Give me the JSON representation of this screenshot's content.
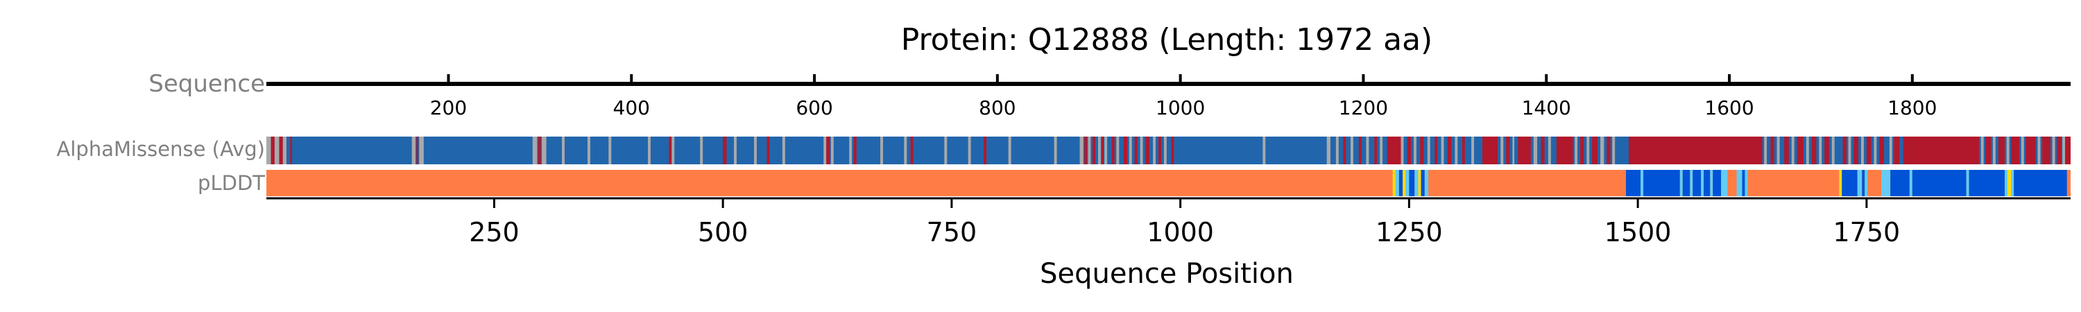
{
  "chart_data": {
    "type": "heatmap",
    "title": "Protein: Q12888 (Length: 1972 aa)",
    "xlabel": "Sequence Position",
    "xlim": [
      1,
      1972
    ],
    "bottom_ticks": [
      250,
      500,
      750,
      1000,
      1250,
      1500,
      1750
    ],
    "top_ticks": [
      200,
      400,
      600,
      800,
      1000,
      1200,
      1400,
      1600,
      1800
    ],
    "row_labels": {
      "sequence": "Sequence",
      "alphamissense": "AlphaMissense (Avg)",
      "plddt": "pLDDT"
    },
    "alphamissense": {
      "colors": {
        "benign": "#2166ac",
        "ambiguous": "#a7a9ac",
        "pathogenic": "#b2182b"
      },
      "default": "benign",
      "segments": [
        [
          1,
          5,
          "ambiguous"
        ],
        [
          6,
          9,
          "pathogenic"
        ],
        [
          10,
          14,
          "ambiguous"
        ],
        [
          15,
          18,
          "pathogenic"
        ],
        [
          19,
          22,
          "ambiguous"
        ],
        [
          27,
          28,
          "pathogenic"
        ],
        [
          160,
          163,
          "ambiguous"
        ],
        [
          165,
          166,
          "pathogenic"
        ],
        [
          168,
          172,
          "ambiguous"
        ],
        [
          292,
          296,
          "ambiguous"
        ],
        [
          298,
          300,
          "pathogenic"
        ],
        [
          302,
          306,
          "ambiguous"
        ],
        [
          324,
          326,
          "ambiguous"
        ],
        [
          352,
          354,
          "ambiguous"
        ],
        [
          375,
          377,
          "ambiguous"
        ],
        [
          418,
          420,
          "ambiguous"
        ],
        [
          441,
          443,
          "pathogenic"
        ],
        [
          444,
          446,
          "ambiguous"
        ],
        [
          475,
          477,
          "ambiguous"
        ],
        [
          500,
          503,
          "pathogenic"
        ],
        [
          512,
          514,
          "ambiguous"
        ],
        [
          534,
          536,
          "ambiguous"
        ],
        [
          548,
          550,
          "pathogenic"
        ],
        [
          565,
          567,
          "ambiguous"
        ],
        [
          610,
          612,
          "ambiguous"
        ],
        [
          613,
          616,
          "pathogenic"
        ],
        [
          618,
          620,
          "ambiguous"
        ],
        [
          638,
          640,
          "ambiguous"
        ],
        [
          643,
          645,
          "pathogenic"
        ],
        [
          672,
          674,
          "ambiguous"
        ],
        [
          698,
          700,
          "ambiguous"
        ],
        [
          705,
          707,
          "pathogenic"
        ],
        [
          742,
          744,
          "ambiguous"
        ],
        [
          768,
          770,
          "ambiguous"
        ],
        [
          785,
          787,
          "pathogenic"
        ],
        [
          812,
          814,
          "ambiguous"
        ],
        [
          862,
          864,
          "ambiguous"
        ],
        [
          890,
          893,
          "ambiguous"
        ],
        [
          895,
          897,
          "pathogenic"
        ],
        [
          899,
          901,
          "ambiguous"
        ],
        [
          904,
          906,
          "pathogenic"
        ],
        [
          910,
          912,
          "ambiguous"
        ],
        [
          914,
          915,
          "pathogenic"
        ],
        [
          917,
          919,
          "ambiguous"
        ],
        [
          925,
          927,
          "pathogenic"
        ],
        [
          930,
          932,
          "ambiguous"
        ],
        [
          938,
          941,
          "pathogenic"
        ],
        [
          944,
          946,
          "ambiguous"
        ],
        [
          950,
          952,
          "pathogenic"
        ],
        [
          956,
          958,
          "ambiguous"
        ],
        [
          962,
          965,
          "pathogenic"
        ],
        [
          970,
          972,
          "ambiguous"
        ],
        [
          976,
          978,
          "pathogenic"
        ],
        [
          982,
          984,
          "ambiguous"
        ],
        [
          990,
          992,
          "pathogenic"
        ],
        [
          1090,
          1092,
          "ambiguous"
        ],
        [
          1160,
          1163,
          "ambiguous"
        ],
        [
          1170,
          1172,
          "ambiguous"
        ],
        [
          1178,
          1180,
          "pathogenic"
        ],
        [
          1186,
          1188,
          "ambiguous"
        ],
        [
          1195,
          1197,
          "pathogenic"
        ],
        [
          1203,
          1205,
          "ambiguous"
        ],
        [
          1212,
          1214,
          "pathogenic"
        ],
        [
          1218,
          1220,
          "ambiguous"
        ],
        [
          1226,
          1240,
          "pathogenic"
        ],
        [
          1241,
          1243,
          "ambiguous"
        ],
        [
          1248,
          1251,
          "pathogenic"
        ],
        [
          1255,
          1257,
          "ambiguous"
        ],
        [
          1262,
          1265,
          "pathogenic"
        ],
        [
          1270,
          1272,
          "ambiguous"
        ],
        [
          1278,
          1280,
          "pathogenic"
        ],
        [
          1285,
          1287,
          "ambiguous"
        ],
        [
          1292,
          1295,
          "pathogenic"
        ],
        [
          1300,
          1302,
          "ambiguous"
        ],
        [
          1308,
          1310,
          "pathogenic"
        ],
        [
          1318,
          1320,
          "ambiguous"
        ],
        [
          1330,
          1346,
          "pathogenic"
        ],
        [
          1350,
          1352,
          "ambiguous"
        ],
        [
          1356,
          1359,
          "pathogenic"
        ],
        [
          1363,
          1364,
          "ambiguous"
        ],
        [
          1369,
          1382,
          "pathogenic"
        ],
        [
          1386,
          1389,
          "ambiguous"
        ],
        [
          1394,
          1397,
          "pathogenic"
        ],
        [
          1402,
          1404,
          "ambiguous"
        ],
        [
          1411,
          1428,
          "pathogenic"
        ],
        [
          1431,
          1433,
          "ambiguous"
        ],
        [
          1437,
          1440,
          "pathogenic"
        ],
        [
          1444,
          1446,
          "ambiguous"
        ],
        [
          1450,
          1455,
          "pathogenic"
        ],
        [
          1459,
          1462,
          "ambiguous"
        ],
        [
          1466,
          1469,
          "pathogenic"
        ],
        [
          1472,
          1474,
          "ambiguous"
        ],
        [
          1490,
          1635,
          "pathogenic"
        ],
        [
          1638,
          1640,
          "ambiguous"
        ],
        [
          1645,
          1648,
          "pathogenic"
        ],
        [
          1652,
          1654,
          "ambiguous"
        ],
        [
          1660,
          1664,
          "pathogenic"
        ],
        [
          1668,
          1670,
          "ambiguous"
        ],
        [
          1674,
          1680,
          "pathogenic"
        ],
        [
          1684,
          1686,
          "ambiguous"
        ],
        [
          1690,
          1694,
          "pathogenic"
        ],
        [
          1698,
          1700,
          "ambiguous"
        ],
        [
          1704,
          1708,
          "pathogenic"
        ],
        [
          1712,
          1714,
          "ambiguous"
        ],
        [
          1724,
          1727,
          "pathogenic"
        ],
        [
          1730,
          1732,
          "ambiguous"
        ],
        [
          1736,
          1740,
          "pathogenic"
        ],
        [
          1744,
          1746,
          "ambiguous"
        ],
        [
          1750,
          1754,
          "pathogenic"
        ],
        [
          1758,
          1760,
          "ambiguous"
        ],
        [
          1764,
          1768,
          "pathogenic"
        ],
        [
          1775,
          1777,
          "ambiguous"
        ],
        [
          1780,
          1785,
          "pathogenic"
        ],
        [
          1790,
          1872,
          "pathogenic"
        ],
        [
          1875,
          1877,
          "ambiguous"
        ],
        [
          1880,
          1885,
          "pathogenic"
        ],
        [
          1888,
          1890,
          "ambiguous"
        ],
        [
          1894,
          1900,
          "pathogenic"
        ],
        [
          1903,
          1905,
          "ambiguous"
        ],
        [
          1908,
          1916,
          "pathogenic"
        ],
        [
          1919,
          1921,
          "ambiguous"
        ],
        [
          1924,
          1934,
          "pathogenic"
        ],
        [
          1937,
          1939,
          "ambiguous"
        ],
        [
          1942,
          1950,
          "pathogenic"
        ],
        [
          1953,
          1955,
          "ambiguous"
        ],
        [
          1958,
          1962,
          "pathogenic"
        ],
        [
          1964,
          1966,
          "ambiguous"
        ],
        [
          1967,
          1972,
          "pathogenic"
        ]
      ]
    },
    "plddt": {
      "colors": {
        "very_high": "#0053d6",
        "confident": "#65cbf3",
        "low": "#ffdb13",
        "very_low": "#ff7d45"
      },
      "default": "very_low",
      "segments": [
        [
          1232,
          1234,
          "low"
        ],
        [
          1235,
          1238,
          "confident"
        ],
        [
          1239,
          1242,
          "very_high"
        ],
        [
          1243,
          1245,
          "low"
        ],
        [
          1246,
          1249,
          "confident"
        ],
        [
          1250,
          1255,
          "very_high"
        ],
        [
          1256,
          1259,
          "confident"
        ],
        [
          1260,
          1262,
          "low"
        ],
        [
          1263,
          1266,
          "very_high"
        ],
        [
          1267,
          1270,
          "confident"
        ],
        [
          1487,
          1502,
          "very_high"
        ],
        [
          1503,
          1505,
          "confident"
        ],
        [
          1506,
          1545,
          "very_high"
        ],
        [
          1546,
          1548,
          "confident"
        ],
        [
          1549,
          1556,
          "very_high"
        ],
        [
          1557,
          1559,
          "confident"
        ],
        [
          1560,
          1568,
          "very_high"
        ],
        [
          1569,
          1571,
          "confident"
        ],
        [
          1572,
          1578,
          "very_high"
        ],
        [
          1579,
          1581,
          "confident"
        ],
        [
          1582,
          1590,
          "very_high"
        ],
        [
          1591,
          1597,
          "confident"
        ],
        [
          1608,
          1613,
          "confident"
        ],
        [
          1614,
          1616,
          "very_high"
        ],
        [
          1617,
          1619,
          "confident"
        ],
        [
          1720,
          1722,
          "low"
        ],
        [
          1723,
          1739,
          "very_high"
        ],
        [
          1740,
          1744,
          "confident"
        ],
        [
          1745,
          1747,
          "very_high"
        ],
        [
          1748,
          1750,
          "confident"
        ],
        [
          1766,
          1775,
          "confident"
        ],
        [
          1776,
          1796,
          "very_high"
        ],
        [
          1797,
          1799,
          "confident"
        ],
        [
          1800,
          1858,
          "very_high"
        ],
        [
          1859,
          1861,
          "confident"
        ],
        [
          1862,
          1900,
          "very_high"
        ],
        [
          1901,
          1903,
          "confident"
        ],
        [
          1904,
          1907,
          "low"
        ],
        [
          1908,
          1910,
          "confident"
        ],
        [
          1911,
          1968,
          "very_high"
        ]
      ]
    }
  }
}
